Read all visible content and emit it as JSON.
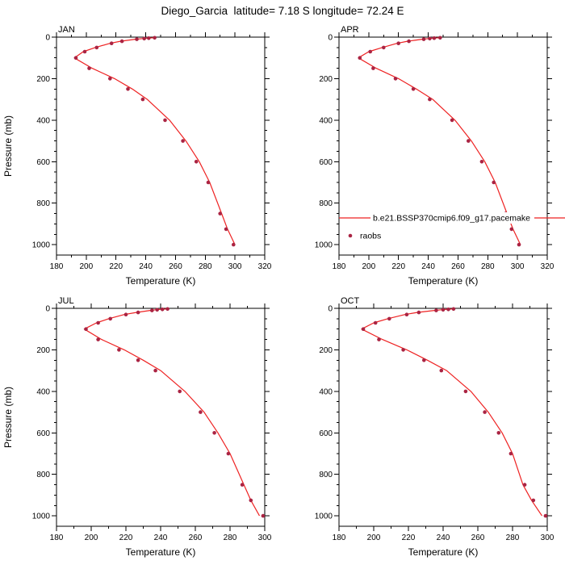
{
  "title": "Diego_Garcia  latitude= 7.18 S longitude= 72.24 E",
  "colors": {
    "model_line": "#ee2222",
    "raobs_marker": "#aa2443",
    "axis": "#000000"
  },
  "chart_data": [
    {
      "type": "line",
      "panel_label": "JAN",
      "xlabel": "Temperature (K)",
      "ylabel": "Pressure (mb)",
      "xlim": [
        180,
        320
      ],
      "xticks": [
        180,
        200,
        220,
        240,
        260,
        280,
        300,
        320
      ],
      "xminor": 10,
      "ylim": [
        0,
        1050
      ],
      "yticks": [
        0,
        200,
        400,
        600,
        800,
        1000
      ],
      "yminor": 50,
      "y_inverted": true,
      "legend": null,
      "series": [
        {
          "name": "b.e21.BSSP370cmip6.f09_g17.pacemake",
          "role": "model",
          "type": "line",
          "color": "#ee2222",
          "pressure": [
            2,
            3,
            5,
            7,
            10,
            15,
            20,
            30,
            50,
            70,
            100,
            150,
            200,
            250,
            300,
            400,
            500,
            600,
            700,
            850,
            925,
            1000
          ],
          "values": [
            247,
            245,
            241,
            238,
            233,
            228,
            223,
            216,
            206,
            198,
            192,
            204,
            219,
            231,
            241,
            256,
            267,
            276,
            283,
            291,
            295,
            300
          ]
        },
        {
          "name": "raobs",
          "role": "obs",
          "type": "scatter",
          "color": "#aa2443",
          "pressure": [
            3,
            5,
            7,
            10,
            20,
            30,
            50,
            70,
            100,
            150,
            200,
            250,
            300,
            400,
            500,
            600,
            700,
            850,
            925,
            1000
          ],
          "values": [
            246,
            242,
            239,
            234,
            224,
            217,
            207,
            199,
            193,
            202,
            216,
            228,
            238,
            253,
            265,
            274,
            282,
            290,
            294,
            299
          ]
        }
      ]
    },
    {
      "type": "line",
      "panel_label": "APR",
      "xlabel": "Temperature (K)",
      "ylabel": "",
      "xlim": [
        180,
        320
      ],
      "xticks": [
        180,
        200,
        220,
        240,
        260,
        280,
        300,
        320
      ],
      "xminor": 10,
      "ylim": [
        0,
        1050
      ],
      "yticks": [
        0,
        200,
        400,
        600,
        800,
        1000
      ],
      "yminor": 50,
      "y_inverted": true,
      "legend": {
        "entries": [
          {
            "label": "b.e21.BSSP370cmip6.f09_g17.pacemake",
            "type": "line"
          },
          {
            "label": "raobs",
            "type": "marker"
          }
        ]
      },
      "series": [
        {
          "name": "b.e21.BSSP370cmip6.f09_g17.pacemake",
          "role": "model",
          "type": "line",
          "color": "#ee2222",
          "pressure": [
            2,
            3,
            5,
            7,
            10,
            15,
            20,
            30,
            50,
            70,
            100,
            150,
            200,
            250,
            300,
            400,
            500,
            600,
            700,
            850,
            925,
            1000
          ],
          "values": [
            249,
            247,
            243,
            240,
            236,
            231,
            226,
            219,
            209,
            200,
            193,
            205,
            220,
            232,
            243,
            258,
            269,
            278,
            285,
            293,
            297,
            302
          ]
        },
        {
          "name": "raobs",
          "role": "obs",
          "type": "scatter",
          "color": "#aa2443",
          "pressure": [
            3,
            5,
            7,
            10,
            20,
            30,
            50,
            70,
            100,
            150,
            200,
            250,
            300,
            400,
            500,
            600,
            700,
            850,
            925,
            1000
          ],
          "values": [
            248,
            244,
            241,
            237,
            227,
            220,
            210,
            201,
            194,
            203,
            218,
            230,
            241,
            256,
            267,
            276,
            284,
            292,
            296,
            301
          ]
        }
      ]
    },
    {
      "type": "line",
      "panel_label": "JUL",
      "xlabel": "Temperature (K)",
      "ylabel": "Pressure (mb)",
      "xlim": [
        180,
        300
      ],
      "xticks": [
        180,
        200,
        220,
        240,
        260,
        280,
        300
      ],
      "xminor": 10,
      "ylim": [
        0,
        1050
      ],
      "yticks": [
        0,
        200,
        400,
        600,
        800,
        1000
      ],
      "yminor": 50,
      "y_inverted": true,
      "legend": null,
      "series": [
        {
          "name": "b.e21.BSSP370cmip6.f09_g17.pacemake",
          "role": "model",
          "type": "line",
          "color": "#ee2222",
          "pressure": [
            2,
            3,
            5,
            7,
            10,
            15,
            20,
            30,
            50,
            70,
            100,
            150,
            200,
            250,
            300,
            400,
            500,
            600,
            700,
            850,
            925,
            1000
          ],
          "values": [
            245,
            243,
            240,
            237,
            234,
            230,
            226,
            219,
            210,
            203,
            196,
            206,
            219,
            230,
            240,
            254,
            265,
            273,
            280,
            288,
            292,
            297
          ]
        },
        {
          "name": "raobs",
          "role": "obs",
          "type": "scatter",
          "color": "#aa2443",
          "pressure": [
            3,
            5,
            7,
            10,
            20,
            30,
            50,
            70,
            100,
            150,
            200,
            250,
            300,
            400,
            500,
            600,
            700,
            850,
            925,
            1000
          ],
          "values": [
            244,
            241,
            238,
            235,
            227,
            220,
            211,
            204,
            197,
            204,
            216,
            227,
            237,
            251,
            263,
            271,
            279,
            287,
            292,
            299
          ]
        }
      ]
    },
    {
      "type": "line",
      "panel_label": "OCT",
      "xlabel": "Temperature (K)",
      "ylabel": "",
      "xlim": [
        180,
        300
      ],
      "xticks": [
        180,
        200,
        220,
        240,
        260,
        280,
        300
      ],
      "xminor": 10,
      "ylim": [
        0,
        1050
      ],
      "yticks": [
        0,
        200,
        400,
        600,
        800,
        1000
      ],
      "yminor": 50,
      "y_inverted": true,
      "legend": null,
      "series": [
        {
          "name": "b.e21.BSSP370cmip6.f09_g17.pacemake",
          "role": "model",
          "type": "line",
          "color": "#ee2222",
          "pressure": [
            2,
            3,
            5,
            7,
            10,
            15,
            20,
            30,
            50,
            70,
            100,
            150,
            200,
            250,
            300,
            400,
            500,
            600,
            700,
            850,
            925,
            1000
          ],
          "values": [
            247,
            245,
            242,
            239,
            235,
            230,
            225,
            218,
            208,
            200,
            193,
            205,
            219,
            231,
            242,
            256,
            266,
            274,
            280,
            286,
            291,
            297
          ]
        },
        {
          "name": "raobs",
          "role": "obs",
          "type": "scatter",
          "color": "#aa2443",
          "pressure": [
            3,
            5,
            7,
            10,
            20,
            30,
            50,
            70,
            100,
            150,
            200,
            250,
            300,
            400,
            500,
            600,
            700,
            850,
            925,
            1000
          ],
          "values": [
            246,
            243,
            240,
            236,
            226,
            219,
            209,
            201,
            194,
            203,
            217,
            229,
            239,
            253,
            264,
            272,
            279,
            287,
            292,
            299
          ]
        }
      ]
    }
  ]
}
